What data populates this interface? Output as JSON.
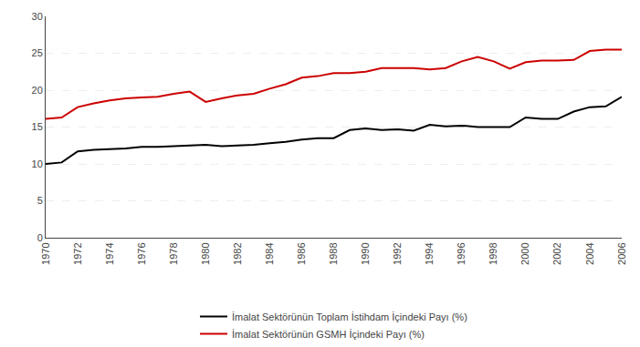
{
  "chart_data": {
    "type": "line",
    "x": [
      1970,
      1971,
      1972,
      1973,
      1974,
      1975,
      1976,
      1977,
      1978,
      1979,
      1980,
      1981,
      1982,
      1983,
      1984,
      1985,
      1986,
      1987,
      1988,
      1989,
      1990,
      1991,
      1992,
      1993,
      1994,
      1995,
      1996,
      1997,
      1998,
      1999,
      2000,
      2001,
      2002,
      2003,
      2004,
      2005,
      2006
    ],
    "series": [
      {
        "name": "İmalat Sektörünün GSMH İçindeki Payı (%)",
        "color": "#cc0000",
        "values": [
          16.1,
          16.3,
          17.7,
          18.2,
          18.6,
          18.9,
          19.0,
          19.1,
          19.5,
          19.8,
          18.4,
          18.9,
          19.3,
          19.5,
          20.2,
          20.8,
          21.7,
          21.9,
          22.3,
          22.3,
          22.5,
          23.0,
          23.0,
          23.0,
          22.8,
          23.0,
          23.9,
          24.5,
          23.9,
          22.9,
          23.8,
          24.0,
          24.0,
          24.1,
          25.3,
          25.5,
          25.5
        ]
      },
      {
        "name": "İmalat Sektörünün Toplam İstihdam İçindeki Payı (%)",
        "color": "#000000",
        "values": [
          10.0,
          10.2,
          11.7,
          11.9,
          12.0,
          12.1,
          12.3,
          12.3,
          12.4,
          12.5,
          12.6,
          12.4,
          12.5,
          12.6,
          12.8,
          13.0,
          13.3,
          13.5,
          13.5,
          14.6,
          14.8,
          14.6,
          14.7,
          14.5,
          15.3,
          15.1,
          15.2,
          15.0,
          15.0,
          15.0,
          16.3,
          16.1,
          16.1,
          17.1,
          17.7,
          17.8,
          19.1
        ]
      }
    ],
    "xlim": [
      1970,
      2006
    ],
    "xticks": [
      1970,
      1972,
      1974,
      1976,
      1978,
      1980,
      1982,
      1984,
      1986,
      1988,
      1990,
      1992,
      1994,
      1996,
      1998,
      2000,
      2002,
      2004,
      2006
    ],
    "ylim": [
      0,
      30
    ],
    "yticks": [
      0,
      5,
      10,
      15,
      20,
      25,
      30
    ],
    "grid": "y",
    "legend": "bottom"
  }
}
